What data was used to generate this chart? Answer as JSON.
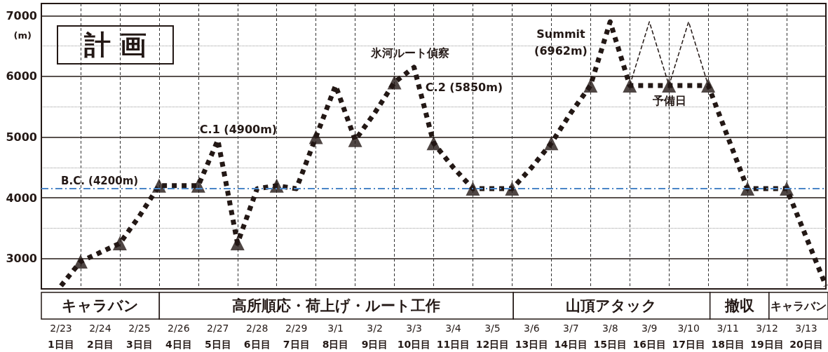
{
  "chart_data": {
    "type": "line",
    "title": "計 画",
    "ylabel": "(m)",
    "categories": [
      null,
      "2/23\n1日目",
      null,
      "2/24\n2日目",
      null,
      "2/25\n3日目",
      null,
      "2/26\n4日目",
      null,
      "2/27\n5日目",
      null,
      "2/28\n6日目",
      null,
      "2/29\n7日目",
      null,
      "3/1\n8日目",
      null,
      "3/2\n9日目",
      null,
      "3/3\n10日目",
      null,
      "3/4\n11日目",
      null,
      "3/5\n12日目",
      null,
      "3/6\n13日目",
      null,
      "3/7\n14日目",
      null,
      "3/8\n15日目",
      null,
      "3/9\n16日目",
      null,
      "3/10\n17日目",
      null,
      "3/11\n18日目",
      null,
      "3/12\n19日目",
      null,
      "3/13\n20日目",
      null
    ],
    "ylim": [
      2500,
      7200
    ],
    "yticks": [
      3000,
      {
        "value": 3500,
        "label": null
      },
      4000,
      {
        "value": 4500,
        "label": null
      },
      5000,
      {
        "value": 5500,
        "label": null
      },
      6000,
      {
        "value": 6500,
        "label": null
      },
      7000
    ],
    "grid": true,
    "series": [
      {
        "color": "#231815",
        "line_style": "dotted",
        "marker": "none",
        "values": [
          null,
          2550,
          2950,
          3100,
          3250,
          3700,
          4200,
          4200,
          4200,
          4950,
          3250,
          4150,
          4200,
          4150,
          5000,
          5850,
          4950,
          5400,
          5900,
          6150,
          4900,
          4500,
          4150,
          4150,
          4150,
          4500,
          4900,
          5400,
          5850,
          6900,
          5850,
          5850,
          5850,
          5850,
          5850,
          5000,
          4150,
          4150,
          4150,
          3350,
          2550
        ]
      },
      {
        "color": "#231815",
        "line_style": "dashed",
        "marker": "none",
        "values": [
          null,
          null,
          null,
          null,
          null,
          null,
          null,
          null,
          null,
          null,
          null,
          null,
          null,
          null,
          null,
          null,
          null,
          null,
          null,
          null,
          null,
          null,
          null,
          null,
          null,
          null,
          null,
          null,
          null,
          null,
          5850,
          6900,
          5850,
          6900,
          5850,
          null,
          null,
          null,
          null,
          null,
          null
        ]
      },
      {
        "type": "scatter",
        "color": "#231815",
        "marker": "triangle",
        "values": [
          null,
          null,
          2950,
          null,
          3250,
          null,
          4200,
          null,
          4200,
          null,
          3250,
          null,
          4200,
          null,
          5000,
          null,
          4950,
          null,
          5900,
          null,
          4900,
          null,
          4150,
          null,
          4150,
          null,
          4900,
          null,
          5850,
          null,
          5850,
          null,
          5850,
          null,
          5850,
          null,
          4150,
          null,
          4150,
          null,
          null
        ]
      }
    ],
    "ref_lines": [
      {
        "axis": "y",
        "value": 4150,
        "label": "B.C. (4200m)",
        "color": "#4a86c8",
        "line_style": "dashed"
      }
    ],
    "annotations": [
      "C.1 (4900m)",
      "氷河ルート偵察",
      "C.2 (5850m)",
      "Summit\n(6962m)",
      "予備日",
      "キャラバン",
      "高所順応・荷上げ・ルート工作",
      "山頂アタック",
      "撤収",
      "キャラバン"
    ]
  }
}
